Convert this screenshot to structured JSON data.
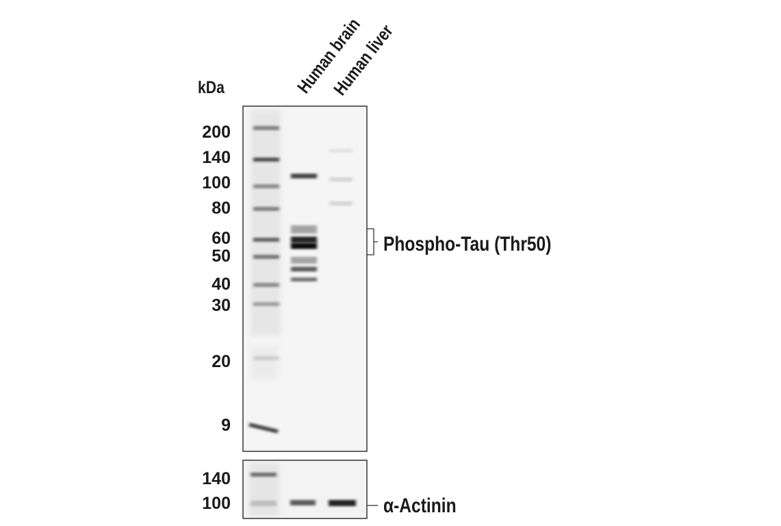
{
  "unit_label": "kDa",
  "lanes": [
    "Human brain",
    "Human liver"
  ],
  "main_panel": {
    "markers": [
      "200",
      "140",
      "100",
      "80",
      "60",
      "50",
      "40",
      "30",
      "20",
      "9"
    ],
    "target": "Phospho-Tau (Thr50)"
  },
  "loading_panel": {
    "markers": [
      "140",
      "100"
    ],
    "target": "α-Actinin"
  }
}
